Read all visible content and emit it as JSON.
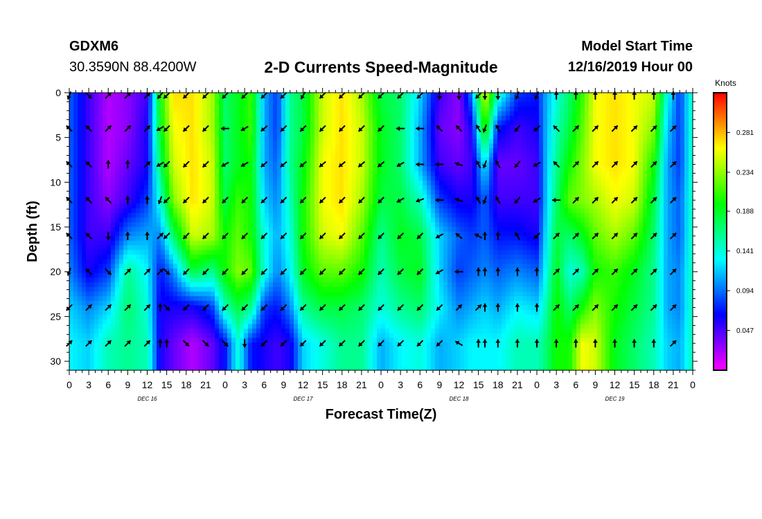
{
  "header": {
    "station": "GDXM6",
    "coords": "30.3590N 88.4200W",
    "title": "2-D Currents Speed-Magnitude",
    "model_start_label": "Model Start Time",
    "model_start_value": "12/16/2019 Hour 00"
  },
  "chart_data": {
    "type": "heatmap",
    "title": "2-D Currents Speed-Magnitude",
    "xlabel": "Forecast Time(Z)",
    "ylabel": "Depth (ft)",
    "xlim": [
      0,
      96
    ],
    "ylim": [
      31,
      0
    ],
    "x_ticks": [
      "0",
      "3",
      "6",
      "9",
      "12",
      "15",
      "18",
      "21",
      "0",
      "3",
      "6",
      "9",
      "12",
      "15",
      "18",
      "21",
      "0",
      "3",
      "6",
      "9",
      "12",
      "15",
      "18",
      "21",
      "0",
      "3",
      "6",
      "9",
      "12",
      "15",
      "18",
      "21",
      "0"
    ],
    "y_ticks": [
      "0",
      "5",
      "10",
      "15",
      "20",
      "25",
      "30"
    ],
    "date_labels": [
      {
        "label": "DEC 16",
        "hour": 12
      },
      {
        "label": "DEC 17",
        "hour": 36
      },
      {
        "label": "DEC 18",
        "hour": 60
      },
      {
        "label": "DEC 19",
        "hour": 84
      }
    ],
    "colorbar": {
      "unit": "Knots",
      "min": 0.0,
      "max": 0.328,
      "ticks": [
        "0.281",
        "0.234",
        "0.188",
        "0.141",
        "0.094",
        "0.047"
      ],
      "colors": [
        "#ff00ff",
        "#8000ff",
        "#0000ff",
        "#0080ff",
        "#00ffff",
        "#00ff80",
        "#00ff00",
        "#80ff00",
        "#ffff00",
        "#ff8000",
        "#ff0000"
      ]
    },
    "arrow_depths_ft": [
      0,
      4,
      8,
      12,
      16,
      20,
      24,
      28
    ],
    "speed_columns": [
      {
        "hour": 0,
        "speeds": [
          0.09,
          0.09,
          0.09,
          0.09,
          0.09,
          0.1,
          0.12,
          0.13
        ]
      },
      {
        "hour": 3,
        "speeds": [
          0.05,
          0.05,
          0.05,
          0.05,
          0.05,
          0.06,
          0.1,
          0.12
        ]
      },
      {
        "hour": 6,
        "speeds": [
          0.02,
          0.02,
          0.02,
          0.03,
          0.05,
          0.08,
          0.12,
          0.15
        ]
      },
      {
        "hour": 9,
        "speeds": [
          0.03,
          0.03,
          0.04,
          0.05,
          0.1,
          0.16,
          0.17,
          0.16
        ]
      },
      {
        "hour": 12,
        "speeds": [
          0.05,
          0.06,
          0.06,
          0.08,
          0.11,
          0.13,
          0.14,
          0.15
        ]
      },
      {
        "hour": 14,
        "speeds": [
          0.2,
          0.19,
          0.17,
          0.14,
          0.1,
          0.07,
          0.06,
          0.06
        ]
      },
      {
        "hour": 16,
        "speeds": [
          0.27,
          0.26,
          0.25,
          0.23,
          0.17,
          0.1,
          0.06,
          0.04
        ]
      },
      {
        "hour": 19,
        "speeds": [
          0.27,
          0.27,
          0.27,
          0.27,
          0.25,
          0.18,
          0.06,
          0.02
        ]
      },
      {
        "hour": 22,
        "speeds": [
          0.24,
          0.24,
          0.25,
          0.25,
          0.24,
          0.16,
          0.08,
          0.04
        ]
      },
      {
        "hour": 24,
        "speeds": [
          0.17,
          0.17,
          0.17,
          0.18,
          0.2,
          0.2,
          0.15,
          0.07
        ]
      },
      {
        "hour": 26,
        "speeds": [
          0.19,
          0.19,
          0.19,
          0.21,
          0.22,
          0.23,
          0.18,
          0.14
        ]
      },
      {
        "hour": 28,
        "speeds": [
          0.21,
          0.21,
          0.2,
          0.2,
          0.2,
          0.22,
          0.16,
          0.07
        ]
      },
      {
        "hour": 30,
        "speeds": [
          0.11,
          0.11,
          0.11,
          0.12,
          0.14,
          0.14,
          0.08,
          0.06
        ]
      },
      {
        "hour": 32,
        "speeds": [
          0.08,
          0.08,
          0.09,
          0.1,
          0.11,
          0.1,
          0.07,
          0.05
        ]
      },
      {
        "hour": 34,
        "speeds": [
          0.16,
          0.16,
          0.16,
          0.15,
          0.14,
          0.13,
          0.1,
          0.06
        ]
      },
      {
        "hour": 36,
        "speeds": [
          0.18,
          0.18,
          0.19,
          0.2,
          0.2,
          0.19,
          0.16,
          0.12
        ]
      },
      {
        "hour": 39,
        "speeds": [
          0.25,
          0.25,
          0.26,
          0.26,
          0.25,
          0.22,
          0.18,
          0.14
        ]
      },
      {
        "hour": 42,
        "speeds": [
          0.27,
          0.27,
          0.27,
          0.27,
          0.26,
          0.22,
          0.18,
          0.16
        ]
      },
      {
        "hour": 45,
        "speeds": [
          0.24,
          0.25,
          0.25,
          0.24,
          0.22,
          0.2,
          0.17,
          0.16
        ]
      },
      {
        "hour": 48,
        "speeds": [
          0.18,
          0.19,
          0.19,
          0.18,
          0.16,
          0.15,
          0.14,
          0.11
        ]
      },
      {
        "hour": 51,
        "speeds": [
          0.17,
          0.17,
          0.17,
          0.18,
          0.19,
          0.18,
          0.16,
          0.13
        ]
      },
      {
        "hour": 54,
        "speeds": [
          0.12,
          0.11,
          0.11,
          0.15,
          0.18,
          0.19,
          0.17,
          0.14
        ]
      },
      {
        "hour": 57,
        "speeds": [
          0.05,
          0.04,
          0.05,
          0.08,
          0.12,
          0.12,
          0.13,
          0.11
        ]
      },
      {
        "hour": 60,
        "speeds": [
          0.03,
          0.03,
          0.04,
          0.06,
          0.09,
          0.08,
          0.1,
          0.12
        ]
      },
      {
        "hour": 62,
        "speeds": [
          0.1,
          0.06,
          0.05,
          0.06,
          0.08,
          0.09,
          0.11,
          0.13
        ]
      },
      {
        "hour": 64,
        "speeds": [
          0.26,
          0.21,
          0.13,
          0.09,
          0.09,
          0.1,
          0.12,
          0.13
        ]
      },
      {
        "hour": 66,
        "speeds": [
          0.15,
          0.07,
          0.04,
          0.05,
          0.07,
          0.09,
          0.11,
          0.13
        ]
      },
      {
        "hour": 69,
        "speeds": [
          0.08,
          0.05,
          0.04,
          0.05,
          0.07,
          0.1,
          0.13,
          0.15
        ]
      },
      {
        "hour": 72,
        "speeds": [
          0.07,
          0.06,
          0.05,
          0.05,
          0.06,
          0.09,
          0.12,
          0.15
        ]
      },
      {
        "hour": 73,
        "speeds": [
          0.1,
          0.1,
          0.1,
          0.1,
          0.11,
          0.12,
          0.14,
          0.16
        ]
      },
      {
        "hour": 75,
        "speeds": [
          0.14,
          0.15,
          0.16,
          0.17,
          0.18,
          0.19,
          0.2,
          0.2
        ]
      },
      {
        "hour": 77,
        "speeds": [
          0.17,
          0.18,
          0.2,
          0.22,
          0.17,
          0.14,
          0.17,
          0.2
        ]
      },
      {
        "hour": 79,
        "speeds": [
          0.21,
          0.22,
          0.23,
          0.23,
          0.19,
          0.15,
          0.2,
          0.26
        ]
      },
      {
        "hour": 81,
        "speeds": [
          0.26,
          0.26,
          0.26,
          0.24,
          0.22,
          0.2,
          0.23,
          0.25
        ]
      },
      {
        "hour": 84,
        "speeds": [
          0.27,
          0.27,
          0.27,
          0.26,
          0.24,
          0.21,
          0.2,
          0.19
        ]
      },
      {
        "hour": 87,
        "speeds": [
          0.26,
          0.26,
          0.26,
          0.25,
          0.22,
          0.19,
          0.18,
          0.17
        ]
      },
      {
        "hour": 90,
        "speeds": [
          0.25,
          0.23,
          0.2,
          0.18,
          0.17,
          0.16,
          0.16,
          0.15
        ]
      },
      {
        "hour": 92,
        "speeds": [
          0.14,
          0.12,
          0.11,
          0.11,
          0.11,
          0.11,
          0.11,
          0.12
        ]
      },
      {
        "hour": 94,
        "speeds": [
          0.08,
          0.08,
          0.08,
          0.09,
          0.09,
          0.1,
          0.1,
          0.11
        ]
      },
      {
        "hour": 96,
        "speeds": [
          0.15,
          0.15,
          0.15,
          0.15,
          0.15,
          0.15,
          0.15,
          0.15
        ]
      }
    ],
    "arrow_hours": [
      0,
      3,
      6,
      9,
      12,
      14,
      15,
      18,
      21,
      24,
      27,
      30,
      33,
      36,
      39,
      42,
      45,
      48,
      51,
      54,
      57,
      60,
      63,
      64,
      66,
      69,
      72,
      75,
      78,
      81,
      84,
      87,
      90,
      93
    ],
    "arrow_directions_deg": [
      [
        202,
        135,
        45,
        45,
        45,
        220,
        225,
        225,
        225,
        225,
        225,
        225,
        225,
        210,
        225,
        225,
        225,
        225,
        225,
        225,
        180,
        180,
        225,
        180,
        180,
        200,
        200,
        0,
        0,
        0,
        0,
        0,
        0,
        0
      ],
      [
        315,
        315,
        45,
        45,
        45,
        240,
        225,
        225,
        225,
        270,
        240,
        230,
        225,
        225,
        225,
        225,
        225,
        225,
        270,
        270,
        315,
        315,
        330,
        200,
        330,
        220,
        230,
        315,
        45,
        45,
        45,
        45,
        45,
        45
      ],
      [
        315,
        315,
        0,
        0,
        45,
        240,
        225,
        225,
        225,
        240,
        240,
        230,
        230,
        230,
        230,
        230,
        230,
        230,
        240,
        270,
        270,
        290,
        330,
        200,
        330,
        220,
        240,
        315,
        45,
        45,
        45,
        45,
        45,
        45
      ],
      [
        315,
        315,
        315,
        0,
        0,
        200,
        225,
        225,
        225,
        225,
        225,
        225,
        225,
        225,
        225,
        225,
        225,
        225,
        240,
        250,
        270,
        290,
        330,
        200,
        330,
        220,
        240,
        270,
        45,
        45,
        45,
        45,
        45,
        45
      ],
      [
        315,
        315,
        180,
        0,
        0,
        45,
        225,
        225,
        225,
        225,
        225,
        225,
        225,
        225,
        225,
        225,
        225,
        225,
        225,
        225,
        240,
        310,
        300,
        0,
        0,
        330,
        225,
        45,
        45,
        45,
        45,
        45,
        45,
        45
      ],
      [
        200,
        315,
        135,
        45,
        45,
        45,
        135,
        225,
        225,
        225,
        225,
        225,
        225,
        225,
        225,
        225,
        225,
        225,
        225,
        225,
        240,
        270,
        0,
        0,
        0,
        0,
        0,
        45,
        45,
        45,
        45,
        45,
        45,
        45
      ],
      [
        225,
        45,
        45,
        45,
        45,
        0,
        135,
        225,
        225,
        225,
        225,
        225,
        225,
        225,
        225,
        225,
        225,
        225,
        225,
        225,
        225,
        45,
        45,
        0,
        0,
        0,
        0,
        45,
        45,
        45,
        45,
        45,
        45,
        45
      ],
      [
        45,
        45,
        45,
        45,
        45,
        0,
        0,
        135,
        135,
        135,
        180,
        225,
        225,
        225,
        225,
        225,
        225,
        225,
        225,
        225,
        225,
        300,
        0,
        0,
        0,
        0,
        0,
        0,
        0,
        0,
        0,
        0,
        0,
        45
      ]
    ]
  }
}
